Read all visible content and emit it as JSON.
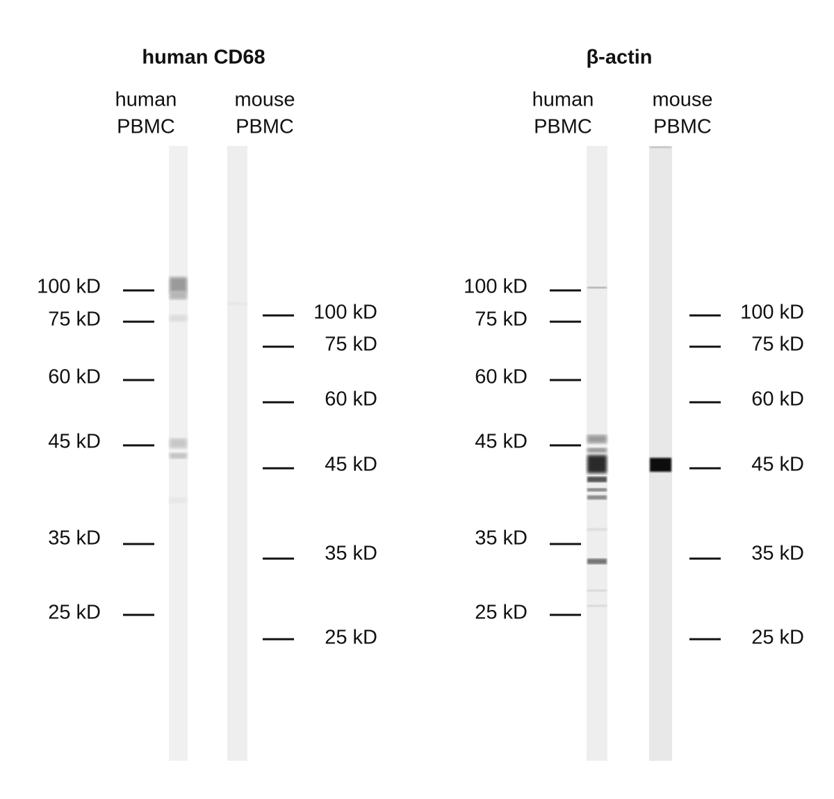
{
  "panels": [
    {
      "title": "human CD68",
      "lanes": [
        {
          "line1": "human",
          "line2": "PBMC"
        },
        {
          "line1": "mouse",
          "line2": "PBMC"
        }
      ],
      "markers_left": [
        "100 kD",
        "75 kD",
        "60 kD",
        "45 kD",
        "35 kD",
        "25 kD"
      ],
      "markers_right": [
        "100 kD",
        "75 kD",
        "60 kD",
        "45 kD",
        "35 kD",
        "25 kD"
      ]
    },
    {
      "title": "β-actin",
      "lanes": [
        {
          "line1": "human",
          "line2": "PBMC"
        },
        {
          "line1": "mouse",
          "line2": "PBMC"
        }
      ],
      "markers_left": [
        "100 kD",
        "75 kD",
        "60 kD",
        "45 kD",
        "35 kD",
        "25 kD"
      ],
      "markers_right": [
        "100 kD",
        "75 kD",
        "60 kD",
        "45 kD",
        "35 kD",
        "25 kD"
      ]
    }
  ]
}
